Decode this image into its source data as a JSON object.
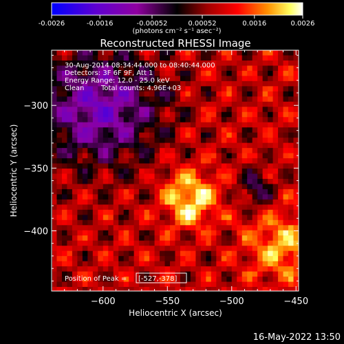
{
  "colorbar": {
    "tick_labels": [
      "-0.0026",
      "-0.0016",
      "-0.00052",
      "0.00052",
      "0.0016",
      "0.0026"
    ],
    "tick_values": [
      -0.0026,
      -0.0016,
      -0.00052,
      0.00052,
      0.0016,
      0.0026
    ],
    "range": [
      -0.0026,
      0.0026
    ],
    "units_label": "(photons cm⁻² s⁻¹ asec⁻²)",
    "colors": [
      "#0000ff",
      "#7000c0",
      "#a000a0",
      "#000000",
      "#a00000",
      "#ff0000",
      "#ff8000",
      "#ffff60",
      "#ffffff"
    ]
  },
  "annotations": {
    "time_range": "30-Aug-2014 08:34:44.000 to 08:40:44.000",
    "detectors": "Detectors: 3F 6F 9F, Att 1",
    "energy": "Energy Range: 12.0 - 25.0 keV",
    "clean": "Clean",
    "total_counts": "Total counts: 4.96E+03",
    "peak_prefix": "Position of Peak = ",
    "peak_value": "[-527,-378]"
  },
  "footer": {
    "date": "16-May-2022 13:50"
  },
  "chart_data": {
    "type": "heatmap",
    "title": "Reconstructed RHESSI Image",
    "xlabel": "Heliocentric X (arcsec)",
    "ylabel": "Heliocentric Y (arcsec)",
    "xlim": [
      -640,
      -448
    ],
    "ylim": [
      -448,
      -256
    ],
    "x_ticks": [
      -600,
      -550,
      -500,
      -450
    ],
    "y_ticks": [
      -300,
      -350,
      -400
    ],
    "x_tick_labels": [
      "−600",
      "−550",
      "−500",
      "−450"
    ],
    "y_tick_labels": [
      "−300",
      "−350",
      "−400"
    ],
    "grid": false,
    "peak": {
      "x": -527,
      "y": -378
    },
    "value_unit": "photons cm-2 s-1 asec-2"
  }
}
